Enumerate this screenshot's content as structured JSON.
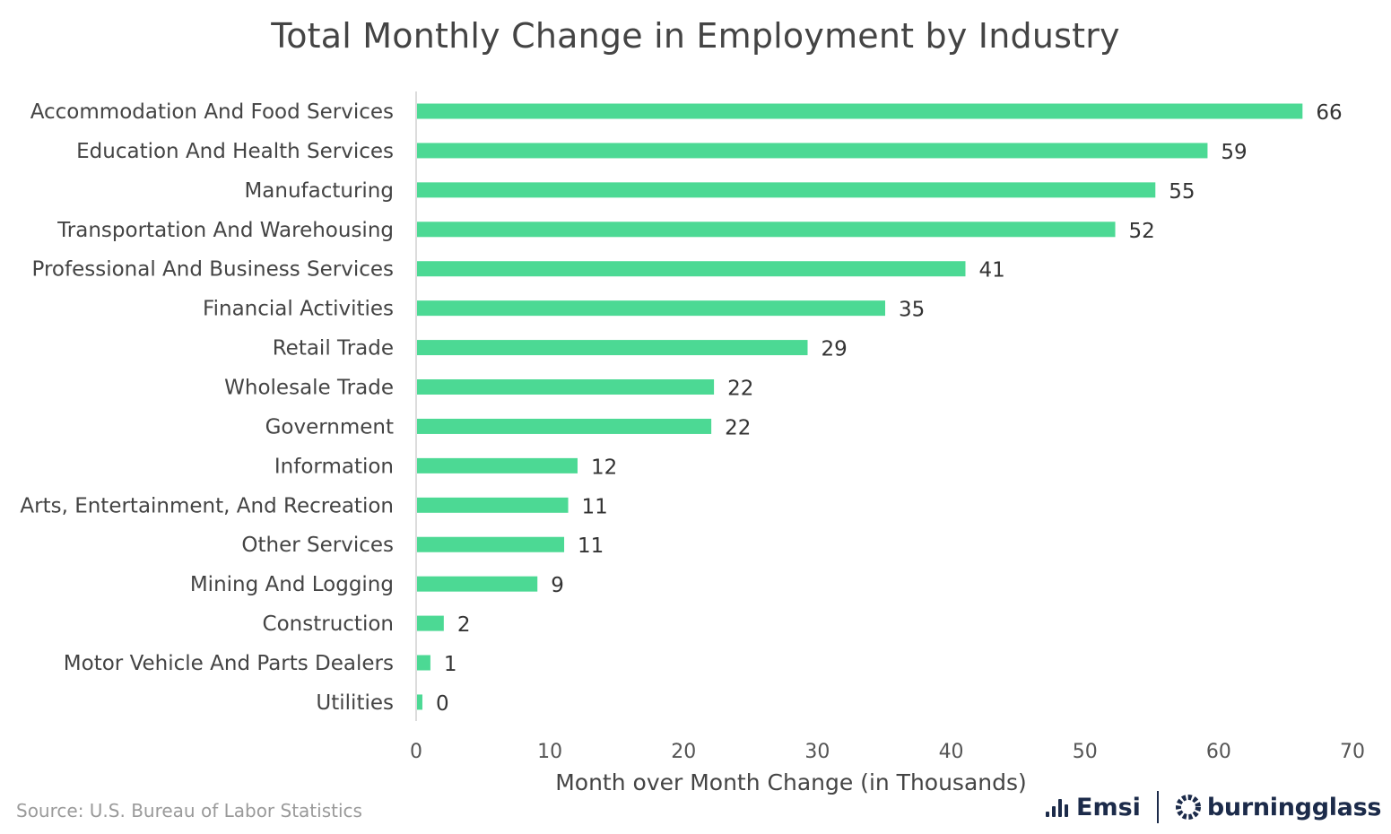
{
  "chart_data": {
    "type": "bar",
    "orientation": "horizontal",
    "title": "Total Monthly Change in Employment by Industry",
    "xlabel": "Month over Month Change (in Thousands)",
    "ylabel": "",
    "xlim": [
      0,
      70
    ],
    "xticks": [
      0,
      10,
      20,
      30,
      40,
      50,
      60,
      70
    ],
    "grid": false,
    "bar_color": "#4cd994",
    "categories": [
      "Accommodation And Food Services",
      "Education And Health Services",
      "Manufacturing",
      "Transportation And Warehousing",
      "Professional And Business Services",
      "Financial Activities",
      "Retail Trade",
      "Wholesale Trade",
      "Government",
      "Information",
      "Arts, Entertainment, And Recreation",
      "Other Services",
      "Mining And Logging",
      "Construction",
      "Motor Vehicle And Parts Dealers",
      "Utilities"
    ],
    "values": [
      66.2,
      59.1,
      55.2,
      52.2,
      41.0,
      35.0,
      29.2,
      22.2,
      22.0,
      12.0,
      11.3,
      11.0,
      9.0,
      2.0,
      1.0,
      0.4
    ],
    "data_labels": [
      "66",
      "59",
      "55",
      "52",
      "41",
      "35",
      "29",
      "22",
      "22",
      "12",
      "11",
      "11",
      "9",
      "2",
      "1",
      "0"
    ]
  },
  "source": "Source:  U.S. Bureau of Labor Statistics",
  "brand": {
    "emsi": "Emsi",
    "burningglass": "burningglass",
    "emsi_icon": "signal-bars-icon",
    "burningglass_icon": "gear-ring-icon",
    "color": "#1c2b4a"
  }
}
